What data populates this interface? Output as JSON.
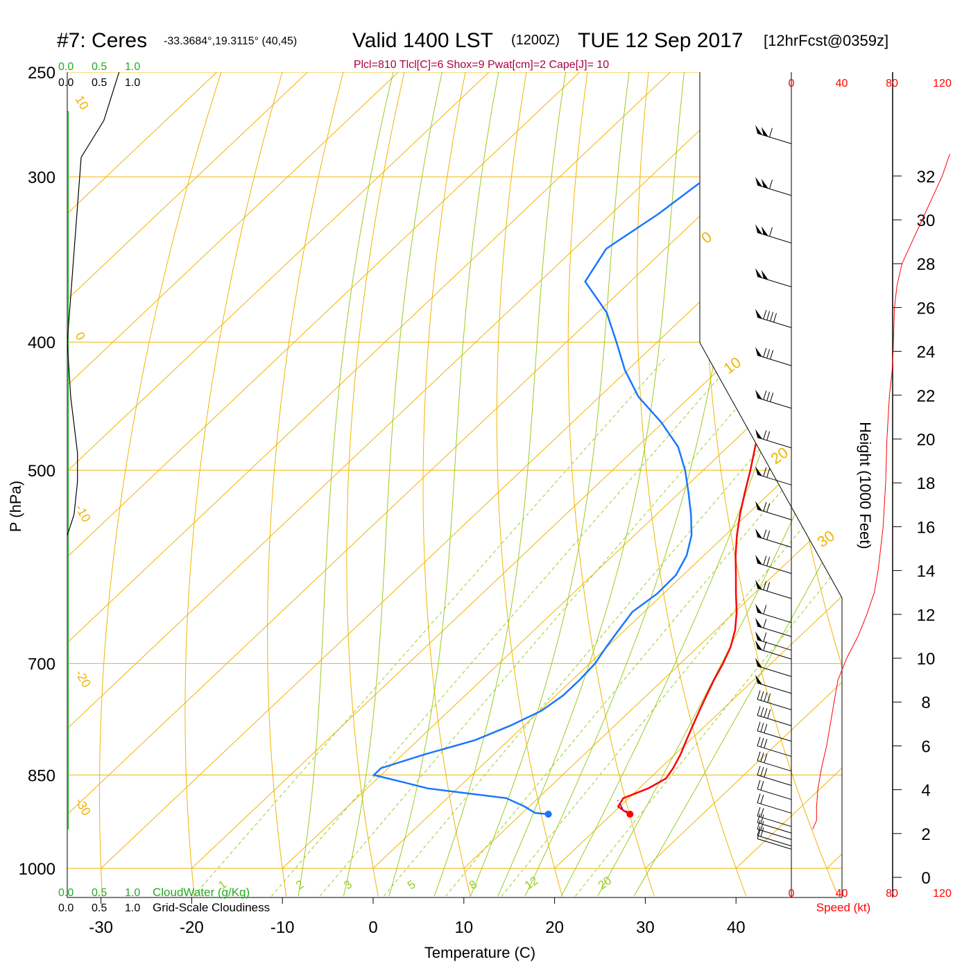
{
  "header": {
    "station": "#7: Ceres",
    "coords": "-33.3684°,19.3115° (40,45)",
    "valid": "Valid 1400 LST",
    "zulu": "(1200Z)",
    "date": "TUE 12 Sep 2017",
    "forecast": "[12hrFcst@0359z]",
    "indices": "Plcl=810 Tlcl[C]=6 Shox=9 Pwat[cm]=2 Cape[J]= 10"
  },
  "colors": {
    "isotherm": "#f0b400",
    "dry_adiabat": "#f0b400",
    "moist_adiabat": "#99cc22",
    "mixing_ratio": "#99cc22",
    "temperature": "#ff0000",
    "dewpoint": "#1a75ff",
    "cloud_water": "#22aa22",
    "indices": "#aa0044"
  },
  "chart_data": {
    "type": "line",
    "title": "#7: Ceres Valid 1400 LST (1200Z) TUE 12 Sep 2017",
    "xlabel": "Temperature (C)",
    "ylabel": "P (hPa)",
    "x_ticks": [
      "-30",
      "-20",
      "-10",
      "0",
      "10",
      "20",
      "30",
      "40"
    ],
    "pressure_ticks": [
      "250",
      "300",
      "400",
      "500",
      "700",
      "850",
      "1000"
    ],
    "pressure_levels": [
      250,
      300,
      400,
      500,
      700,
      850,
      1000
    ],
    "isotherm_label_values": [
      10,
      0,
      -10,
      -20,
      -30
    ],
    "isotherm_labels": [
      "10",
      "0",
      "-10",
      "-20",
      "-30"
    ],
    "dry_adiabat_label_values": [
      0,
      10,
      20,
      30
    ],
    "dry_adiabat_labels": [
      "0",
      "10",
      "20",
      "30"
    ],
    "mixing_ratio_values": [
      1,
      2,
      3,
      5,
      8,
      12,
      20
    ],
    "mixing_ratio_labels": [
      "1",
      "2",
      "3",
      "5",
      "8",
      "12",
      "20"
    ],
    "series": [
      {
        "name": "Temperature",
        "pressure": [
          910,
          905,
          898,
          885,
          870,
          855,
          840,
          820,
          800,
          780,
          760,
          740,
          720,
          700,
          680,
          660,
          640,
          620,
          600,
          580,
          560,
          540,
          520,
          500,
          480,
          460,
          440,
          420,
          400,
          380,
          360,
          340,
          320,
          300,
          280,
          265
        ],
        "temperature": [
          22,
          21,
          19.8,
          19.4,
          21,
          21.8,
          21.4,
          20.6,
          19.6,
          18.6,
          17.6,
          16.6,
          15.6,
          14.7,
          13.6,
          12.1,
          10.2,
          8.0,
          5.8,
          3.5,
          1.3,
          -0.8,
          -2.8,
          -4.8,
          -7.0,
          -9.3,
          -11.5,
          -14.3,
          -17.3,
          -20.6,
          -24.0,
          -27.7,
          -31.2,
          -35.0,
          -39.3,
          -42.6
        ]
      },
      {
        "name": "Dewpoint",
        "pressure": [
          910,
          908,
          898,
          885,
          870,
          860,
          850,
          840,
          820,
          800,
          780,
          760,
          740,
          720,
          700,
          680,
          660,
          640,
          620,
          600,
          580,
          560,
          540,
          520,
          500,
          480,
          460,
          440,
          420,
          400,
          380,
          360,
          340,
          320,
          300,
          280,
          265
        ],
        "temperature": [
          13,
          11.4,
          9.5,
          6.5,
          -3.3,
          -7,
          -10.8,
          -10.8,
          -7.6,
          -3.7,
          -1.5,
          0.2,
          0.8,
          0.8,
          0.6,
          -0.1,
          -0.7,
          -1.3,
          -0.7,
          -0.8,
          -1.9,
          -3.7,
          -6.2,
          -9.0,
          -12.0,
          -15.5,
          -20.2,
          -25.7,
          -30.3,
          -34.5,
          -39.0,
          -45.0,
          -46.5,
          -44.8,
          -43.7,
          -42.6,
          -43.0
        ]
      },
      {
        "name": "Parcel",
        "pressure": [
          910,
          900,
          888
        ],
        "temperature": [
          22,
          20.4,
          19
        ]
      }
    ],
    "surface_temperature": 22,
    "surface_dewpoint": 13,
    "surface_pressure": 910,
    "wind_speed_axis": {
      "label": "Speed (kt)",
      "ticks": [
        "0",
        "40",
        "80",
        "120"
      ],
      "values": [
        0,
        40,
        80,
        120
      ]
    },
    "wind_speed_profile": {
      "name": "Speed (kt)",
      "height_kft": [
        2.2,
        2.6,
        3.2,
        4,
        5,
        6,
        8,
        9,
        10,
        11,
        12,
        13,
        14,
        16,
        18,
        20,
        22,
        23,
        24,
        26,
        27,
        28,
        29,
        30,
        31,
        32,
        33
      ],
      "speed_kt": [
        17,
        20,
        20,
        21,
        24,
        28,
        34,
        37,
        44,
        53,
        60,
        66,
        69,
        73,
        75,
        76,
        78,
        80,
        81,
        82,
        84,
        88,
        96,
        104,
        112,
        120,
        126
      ]
    },
    "height_axis": {
      "label": "Height (1000 Feet)",
      "ticks": [
        "0",
        "2",
        "4",
        "6",
        "8",
        "10",
        "12",
        "14",
        "16",
        "18",
        "20",
        "22",
        "24",
        "26",
        "28",
        "30",
        "32"
      ],
      "values": [
        0,
        2,
        4,
        6,
        8,
        10,
        12,
        14,
        16,
        18,
        20,
        22,
        24,
        26,
        28,
        30,
        32
      ]
    },
    "cloud_water_axis": {
      "label": "CloudWater (g/Kg)",
      "ticks": [
        "0.0",
        "0.5",
        "1.0"
      ]
    },
    "cloudiness_axis": {
      "label": "Grid-Scale Cloudiness",
      "ticks": [
        "0.0",
        "0.5",
        "1.0"
      ]
    },
    "cloudiness_profile": {
      "pressure": [
        250,
        272,
        290,
        400,
        440,
        485,
        510,
        540,
        560
      ],
      "fraction": [
        0.15,
        0.15,
        0.0,
        0.0,
        0.05,
        0.15,
        0.15,
        0.1,
        0.0
      ]
    },
    "wind_barbs": {
      "pressure": [
        265,
        290,
        315,
        340,
        365,
        390,
        420,
        450,
        480,
        510,
        535,
        560,
        585,
        610,
        625,
        640,
        650,
        670,
        690,
        710,
        730,
        750,
        770,
        790,
        810,
        830,
        850,
        870,
        880,
        890,
        900,
        905
      ],
      "speed_kt": [
        115,
        110,
        110,
        100,
        95,
        80,
        78,
        77,
        76,
        75,
        72,
        70,
        68,
        66,
        63,
        60,
        58,
        53,
        48,
        44,
        40,
        37,
        34,
        31,
        28,
        24,
        22,
        21,
        20,
        20,
        18,
        17
      ]
    }
  }
}
